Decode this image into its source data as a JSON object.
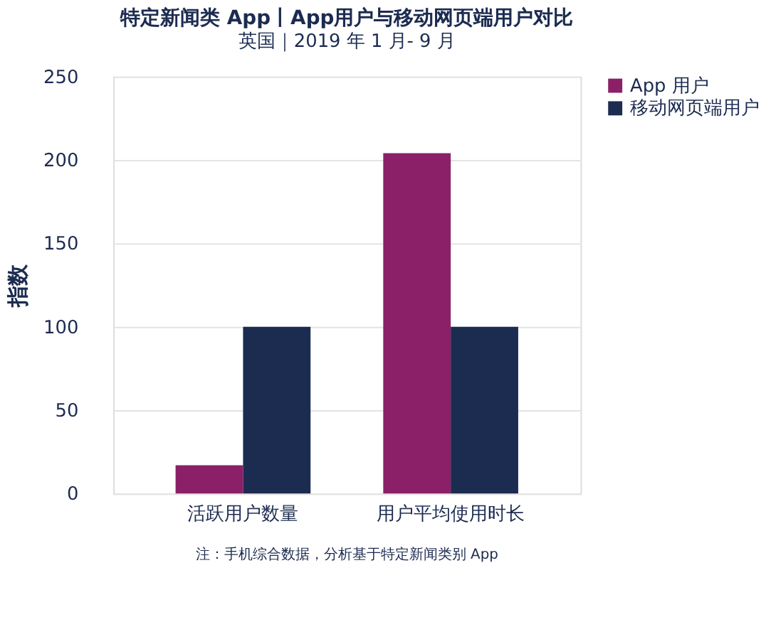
{
  "chart_data": {
    "type": "bar",
    "title": "特定新闻类 App丨App用户与移动网页端用户对比",
    "subtitle": "英国｜2019 年 1 月- 9 月",
    "ylabel": "指数",
    "categories": [
      "活跃用户数量",
      "用户平均使用时长"
    ],
    "series": [
      {
        "name": "App 用户",
        "color": "#8b2068",
        "values": [
          17,
          204
        ]
      },
      {
        "name": "移动网页端用户",
        "color": "#1c2b50",
        "values": [
          100,
          100
        ]
      }
    ],
    "ylim": [
      0,
      250
    ],
    "yticks": [
      0,
      50,
      100,
      150,
      200,
      250
    ],
    "grid": "y",
    "legend": "right",
    "annotations": [
      "注：手机综合数据，分析基于特定新闻类别 App"
    ]
  }
}
